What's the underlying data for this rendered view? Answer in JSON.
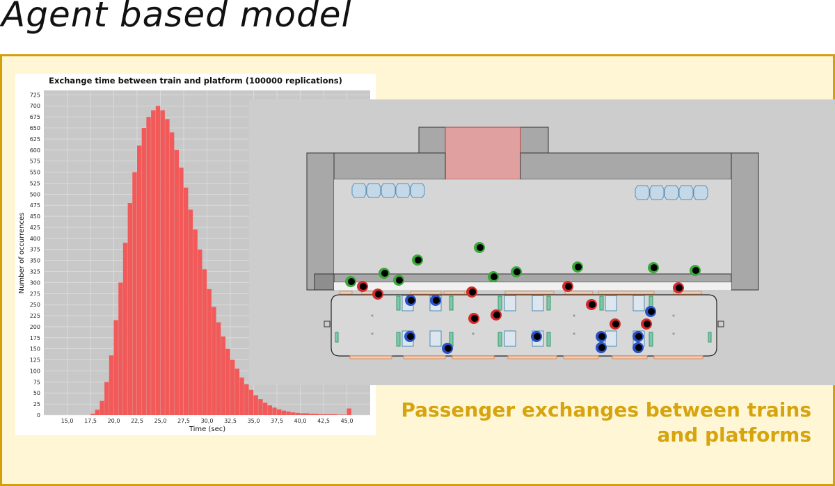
{
  "slide": {
    "title": "Agent based model",
    "caption_line1": "Passenger exchanges between trains",
    "caption_line2": "and platforms"
  },
  "colors": {
    "frame_border": "#d4a00a",
    "frame_fill": "#fff6d6",
    "caption": "#d6a40c",
    "histogram_bar": "#f25a5a",
    "plot_background": "#c8c8c8",
    "agent_green": "#3aa83a",
    "agent_red": "#d42a2a",
    "agent_blue": "#2a50c8",
    "door_zone": "#e0a0a0",
    "seat_fill": "#c5d8e8",
    "seat_stroke": "#5a8fb5",
    "door_trim": "#e08a55"
  },
  "chart_data": {
    "type": "bar",
    "title": "Exchange time between train and platform (100000 replications)",
    "xlabel": "Time (sec)",
    "ylabel": "Number of occurrences",
    "xlim": [
      12.5,
      47.5
    ],
    "ylim": [
      0,
      735
    ],
    "grid": true,
    "x_ticks": [
      "15,0",
      "17,5",
      "20,0",
      "22,5",
      "25,0",
      "27,5",
      "30,0",
      "32,5",
      "35,0",
      "37,5",
      "40,0",
      "42,5",
      "45,0"
    ],
    "y_ticks": [
      "0",
      "25",
      "50",
      "75",
      "100",
      "125",
      "150",
      "175",
      "200",
      "225",
      "250",
      "275",
      "300",
      "325",
      "350",
      "375",
      "400",
      "425",
      "450",
      "475",
      "500",
      "525",
      "550",
      "575",
      "600",
      "625",
      "650",
      "675",
      "700",
      "725"
    ],
    "x": [
      17.5,
      18.0,
      18.5,
      19.0,
      19.5,
      20.0,
      20.5,
      21.0,
      21.5,
      22.0,
      22.5,
      23.0,
      23.5,
      24.0,
      24.5,
      25.0,
      25.5,
      26.0,
      26.5,
      27.0,
      27.5,
      28.0,
      28.5,
      29.0,
      29.5,
      30.0,
      30.5,
      31.0,
      31.5,
      32.0,
      32.5,
      33.0,
      33.5,
      34.0,
      34.5,
      35.0,
      35.5,
      36.0,
      36.5,
      37.0,
      37.5,
      38.0,
      38.5,
      39.0,
      39.5,
      40.0,
      41.0,
      42.0,
      43.0,
      44.0,
      45.0
    ],
    "values": [
      3,
      12,
      32,
      75,
      135,
      215,
      300,
      390,
      480,
      550,
      610,
      650,
      675,
      690,
      700,
      690,
      670,
      640,
      600,
      560,
      515,
      465,
      420,
      375,
      330,
      285,
      245,
      210,
      178,
      150,
      125,
      105,
      85,
      70,
      57,
      45,
      36,
      28,
      22,
      17,
      13,
      10,
      8,
      6,
      5,
      4,
      3,
      2,
      2,
      1,
      15
    ]
  },
  "simulation": {
    "agents": [
      {
        "x": 504,
        "y": 405,
        "group": "green"
      },
      {
        "x": 552,
        "y": 393,
        "group": "green"
      },
      {
        "x": 573,
        "y": 403,
        "group": "green"
      },
      {
        "x": 600,
        "y": 374,
        "group": "green"
      },
      {
        "x": 689,
        "y": 356,
        "group": "green"
      },
      {
        "x": 709,
        "y": 398,
        "group": "green"
      },
      {
        "x": 742,
        "y": 391,
        "group": "green"
      },
      {
        "x": 830,
        "y": 384,
        "group": "green"
      },
      {
        "x": 939,
        "y": 385,
        "group": "green"
      },
      {
        "x": 999,
        "y": 389,
        "group": "green"
      },
      {
        "x": 521,
        "y": 412,
        "group": "red"
      },
      {
        "x": 543,
        "y": 423,
        "group": "red"
      },
      {
        "x": 678,
        "y": 420,
        "group": "red"
      },
      {
        "x": 681,
        "y": 458,
        "group": "red"
      },
      {
        "x": 713,
        "y": 453,
        "group": "red"
      },
      {
        "x": 816,
        "y": 412,
        "group": "red"
      },
      {
        "x": 850,
        "y": 438,
        "group": "red"
      },
      {
        "x": 884,
        "y": 466,
        "group": "red"
      },
      {
        "x": 929,
        "y": 466,
        "group": "red"
      },
      {
        "x": 975,
        "y": 414,
        "group": "red"
      },
      {
        "x": 590,
        "y": 432,
        "group": "blue"
      },
      {
        "x": 626,
        "y": 432,
        "group": "blue"
      },
      {
        "x": 589,
        "y": 484,
        "group": "blue"
      },
      {
        "x": 643,
        "y": 501,
        "group": "blue"
      },
      {
        "x": 771,
        "y": 484,
        "group": "blue"
      },
      {
        "x": 864,
        "y": 484,
        "group": "blue"
      },
      {
        "x": 864,
        "y": 500,
        "group": "blue"
      },
      {
        "x": 917,
        "y": 484,
        "group": "blue"
      },
      {
        "x": 917,
        "y": 500,
        "group": "blue"
      },
      {
        "x": 935,
        "y": 448,
        "group": "blue"
      }
    ]
  }
}
